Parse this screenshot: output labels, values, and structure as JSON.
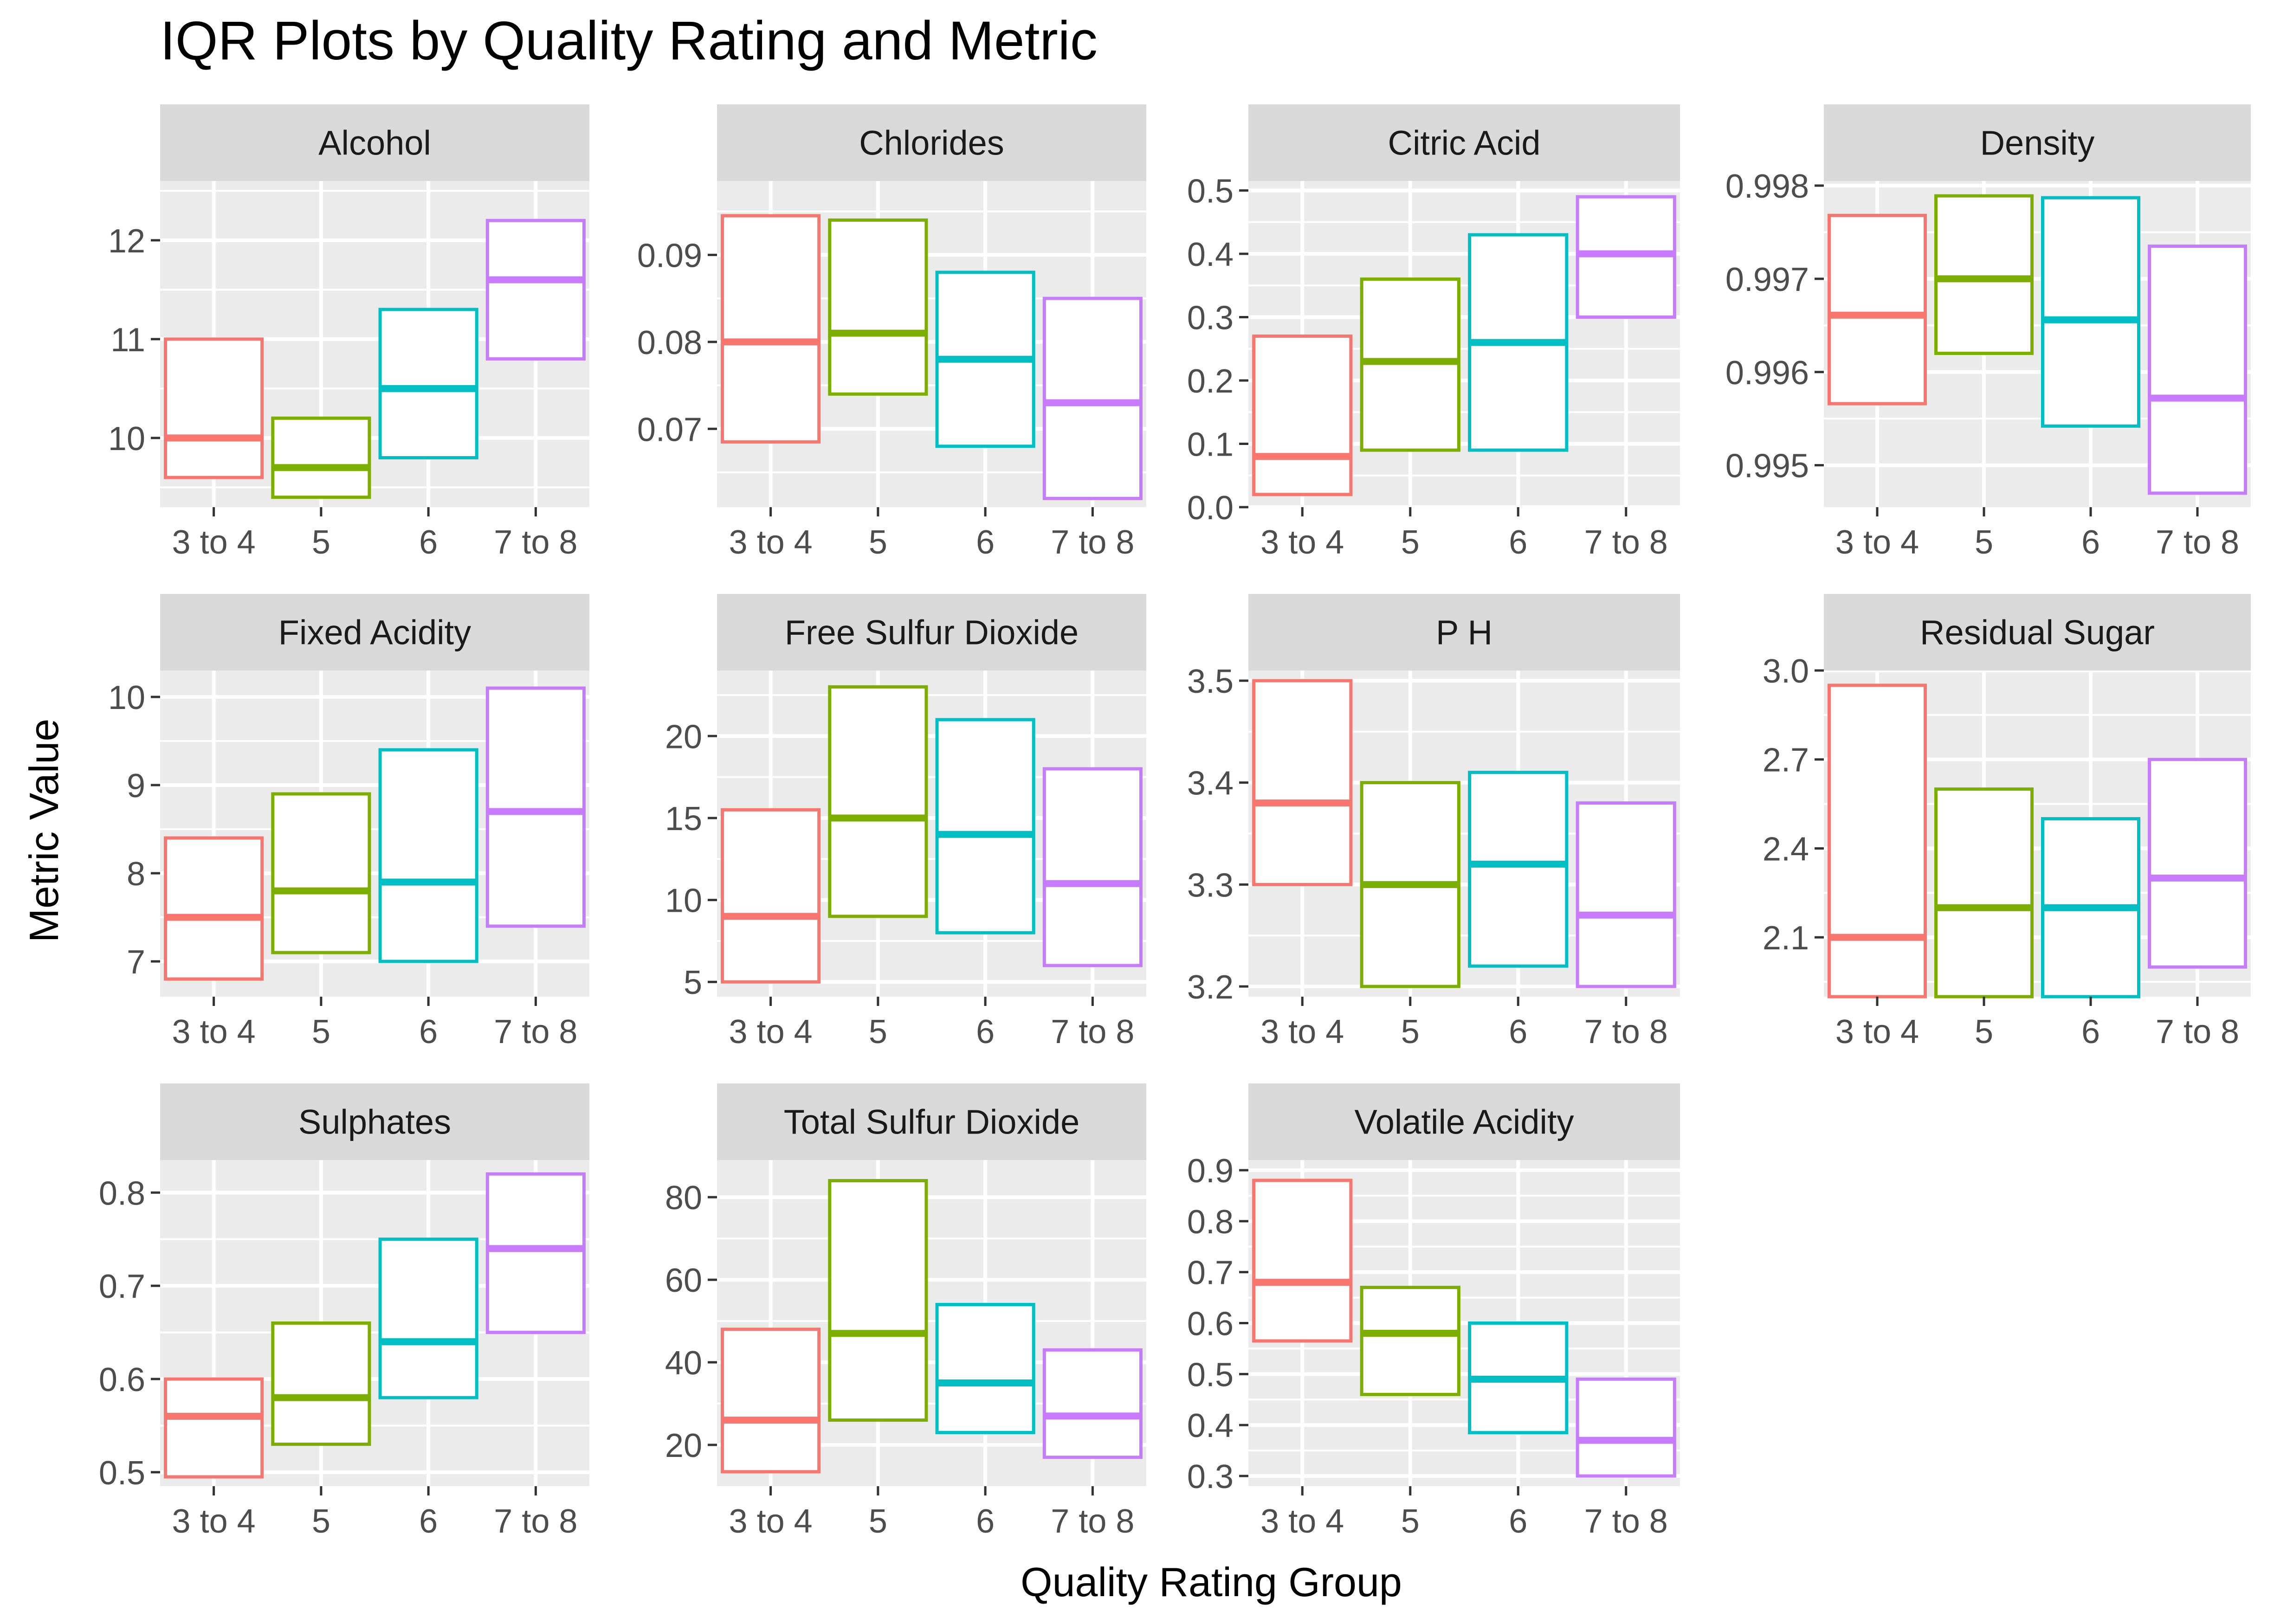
{
  "chart_data": {
    "type": "boxplot",
    "title": "IQR Plots by Quality Rating and Metric",
    "xlabel": "Quality Rating Group",
    "ylabel": "Metric Value",
    "categories": [
      "3 to 4",
      "5",
      "6",
      "7 to 8"
    ],
    "colors": [
      "#F8766D",
      "#7CAE00",
      "#00BFC4",
      "#C77CFF"
    ],
    "panel_strip_color": "#D9D9D9",
    "panel_background": "#EBEBEB",
    "grid": true,
    "panels": [
      {
        "name": "Alcohol",
        "ylim": [
          9.3,
          12.6
        ],
        "ticks": [
          10,
          11,
          12
        ],
        "tick_labels": [
          "10",
          "11",
          "12"
        ],
        "boxes": [
          {
            "q1": 9.6,
            "median": 10.0,
            "q3": 11.0
          },
          {
            "q1": 9.4,
            "median": 9.7,
            "q3": 10.2
          },
          {
            "q1": 9.8,
            "median": 10.5,
            "q3": 11.3
          },
          {
            "q1": 10.8,
            "median": 11.6,
            "q3": 12.2
          }
        ]
      },
      {
        "name": "Chlorides",
        "ylim": [
          0.061,
          0.0985
        ],
        "ticks": [
          0.07,
          0.08,
          0.09
        ],
        "tick_labels": [
          "0.07",
          "0.08",
          "0.09"
        ],
        "boxes": [
          {
            "q1": 0.0685,
            "median": 0.08,
            "q3": 0.0945
          },
          {
            "q1": 0.074,
            "median": 0.081,
            "q3": 0.094
          },
          {
            "q1": 0.068,
            "median": 0.078,
            "q3": 0.088
          },
          {
            "q1": 0.062,
            "median": 0.073,
            "q3": 0.085
          }
        ]
      },
      {
        "name": "Citric Acid",
        "ylim": [
          0.0,
          0.515
        ],
        "ticks": [
          0.0,
          0.1,
          0.2,
          0.3,
          0.4,
          0.5
        ],
        "tick_labels": [
          "0.0",
          "0.1",
          "0.2",
          "0.3",
          "0.4",
          "0.5"
        ],
        "boxes": [
          {
            "q1": 0.02,
            "median": 0.08,
            "q3": 0.27
          },
          {
            "q1": 0.09,
            "median": 0.23,
            "q3": 0.36
          },
          {
            "q1": 0.09,
            "median": 0.26,
            "q3": 0.43
          },
          {
            "q1": 0.3,
            "median": 0.4,
            "q3": 0.49
          }
        ]
      },
      {
        "name": "Density",
        "ylim": [
          0.99455,
          0.99805
        ],
        "ticks": [
          0.995,
          0.996,
          0.997,
          0.998
        ],
        "tick_labels": [
          "0.995",
          "0.996",
          "0.997",
          "0.998"
        ],
        "boxes": [
          {
            "q1": 0.99566,
            "median": 0.99661,
            "q3": 0.99768
          },
          {
            "q1": 0.9962,
            "median": 0.997,
            "q3": 0.99789
          },
          {
            "q1": 0.99542,
            "median": 0.99656,
            "q3": 0.99787
          },
          {
            "q1": 0.9947,
            "median": 0.99572,
            "q3": 0.99735
          }
        ]
      },
      {
        "name": "Fixed Acidity",
        "ylim": [
          6.6,
          10.3
        ],
        "ticks": [
          7,
          8,
          9,
          10
        ],
        "tick_labels": [
          "7",
          "8",
          "9",
          "10"
        ],
        "boxes": [
          {
            "q1": 6.8,
            "median": 7.5,
            "q3": 8.4
          },
          {
            "q1": 7.1,
            "median": 7.8,
            "q3": 8.9
          },
          {
            "q1": 7.0,
            "median": 7.9,
            "q3": 9.4
          },
          {
            "q1": 7.4,
            "median": 8.7,
            "q3": 10.1
          }
        ]
      },
      {
        "name": "Free Sulfur Dioxide",
        "ylim": [
          4.1,
          24.0
        ],
        "ticks": [
          5,
          10,
          15,
          20
        ],
        "tick_labels": [
          "5",
          "10",
          "15",
          "20"
        ],
        "boxes": [
          {
            "q1": 5.0,
            "median": 9.0,
            "q3": 15.5
          },
          {
            "q1": 9.0,
            "median": 15.0,
            "q3": 23.0
          },
          {
            "q1": 8.0,
            "median": 14.0,
            "q3": 21.0
          },
          {
            "q1": 6.0,
            "median": 11.0,
            "q3": 18.0
          }
        ]
      },
      {
        "name": "P H",
        "ylim": [
          3.19,
          3.51
        ],
        "ticks": [
          3.2,
          3.3,
          3.4,
          3.5
        ],
        "tick_labels": [
          "3.2",
          "3.3",
          "3.4",
          "3.5"
        ],
        "boxes": [
          {
            "q1": 3.3,
            "median": 3.38,
            "q3": 3.5
          },
          {
            "q1": 3.2,
            "median": 3.3,
            "q3": 3.4
          },
          {
            "q1": 3.22,
            "median": 3.32,
            "q3": 3.41
          },
          {
            "q1": 3.2,
            "median": 3.27,
            "q3": 3.38
          }
        ]
      },
      {
        "name": "Residual Sugar",
        "ylim": [
          1.9,
          3.0
        ],
        "ticks": [
          2.1,
          2.4,
          2.7,
          3.0
        ],
        "tick_labels": [
          "2.1",
          "2.4",
          "2.7",
          "3.0"
        ],
        "boxes": [
          {
            "q1": 1.9,
            "median": 2.1,
            "q3": 2.95
          },
          {
            "q1": 1.9,
            "median": 2.2,
            "q3": 2.6
          },
          {
            "q1": 1.9,
            "median": 2.2,
            "q3": 2.5
          },
          {
            "q1": 2.0,
            "median": 2.3,
            "q3": 2.7
          }
        ]
      },
      {
        "name": "Sulphates",
        "ylim": [
          0.485,
          0.835
        ],
        "ticks": [
          0.5,
          0.6,
          0.7,
          0.8
        ],
        "tick_labels": [
          "0.5",
          "0.6",
          "0.7",
          "0.8"
        ],
        "boxes": [
          {
            "q1": 0.495,
            "median": 0.56,
            "q3": 0.6
          },
          {
            "q1": 0.53,
            "median": 0.58,
            "q3": 0.66
          },
          {
            "q1": 0.58,
            "median": 0.64,
            "q3": 0.75
          },
          {
            "q1": 0.65,
            "median": 0.74,
            "q3": 0.82
          }
        ]
      },
      {
        "name": "Total Sulfur Dioxide",
        "ylim": [
          10,
          89
        ],
        "ticks": [
          20,
          40,
          60,
          80
        ],
        "tick_labels": [
          "20",
          "40",
          "60",
          "80"
        ],
        "boxes": [
          {
            "q1": 13.5,
            "median": 26,
            "q3": 48
          },
          {
            "q1": 26,
            "median": 47,
            "q3": 84
          },
          {
            "q1": 23,
            "median": 35,
            "q3": 54
          },
          {
            "q1": 17,
            "median": 27,
            "q3": 43
          }
        ]
      },
      {
        "name": "Volatile Acidity",
        "ylim": [
          0.28,
          0.92
        ],
        "ticks": [
          0.3,
          0.4,
          0.5,
          0.6,
          0.7,
          0.8,
          0.9
        ],
        "tick_labels": [
          "0.3",
          "0.4",
          "0.5",
          "0.6",
          "0.7",
          "0.8",
          "0.9"
        ],
        "boxes": [
          {
            "q1": 0.565,
            "median": 0.68,
            "q3": 0.88
          },
          {
            "q1": 0.46,
            "median": 0.58,
            "q3": 0.67
          },
          {
            "q1": 0.385,
            "median": 0.49,
            "q3": 0.6
          },
          {
            "q1": 0.3,
            "median": 0.37,
            "q3": 0.49
          }
        ]
      }
    ]
  }
}
